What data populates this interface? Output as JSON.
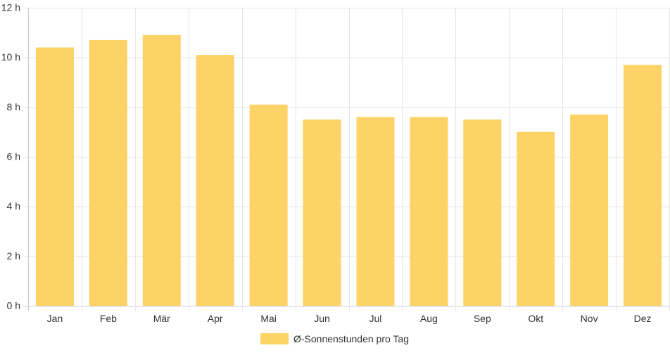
{
  "chart_data": {
    "type": "bar",
    "categories": [
      "Jan",
      "Feb",
      "Mär",
      "Apr",
      "Mai",
      "Jun",
      "Jul",
      "Aug",
      "Sep",
      "Okt",
      "Nov",
      "Dez"
    ],
    "values": [
      10.4,
      10.7,
      10.9,
      10.1,
      8.1,
      7.5,
      7.6,
      7.6,
      7.5,
      7.0,
      7.7,
      9.7
    ],
    "y_tick_labels": [
      "0 h",
      "2 h",
      "4 h",
      "6 h",
      "8 h",
      "10 h",
      "12 h"
    ],
    "y_ticks": [
      0,
      2,
      4,
      6,
      8,
      10,
      12
    ],
    "ylim": [
      0,
      12
    ],
    "grid": true,
    "legend": {
      "position": "bottom",
      "label": "Ø-Sonnenstunden pro Tag"
    },
    "colors": {
      "bar": "#FDD267",
      "grid": "#E5E5E5",
      "axis": "#CCCCCC",
      "text": "#333333"
    }
  }
}
